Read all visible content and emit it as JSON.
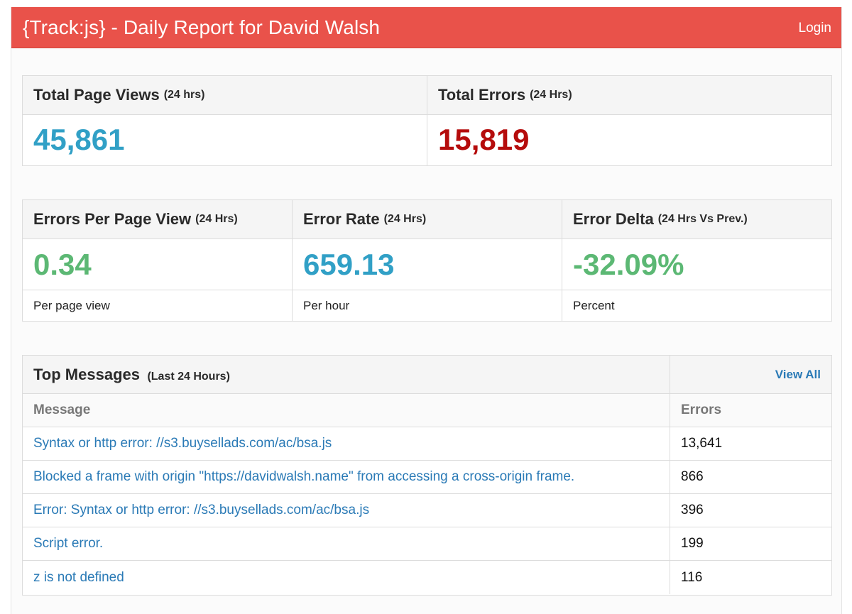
{
  "header": {
    "title": "{Track:js} - Daily Report for David Walsh",
    "login_label": "Login"
  },
  "totals": {
    "page_views": {
      "label": "Total Page Views",
      "period": "(24 hrs)",
      "value": "45,861"
    },
    "errors": {
      "label": "Total Errors",
      "period": "(24 Hrs)",
      "value": "15,819"
    }
  },
  "rates": {
    "errors_per_page_view": {
      "label": "Errors Per Page View",
      "period": "(24 Hrs)",
      "value": "0.34",
      "footer": "Per page view"
    },
    "error_rate": {
      "label": "Error Rate",
      "period": "(24 Hrs)",
      "value": "659.13",
      "footer": "Per hour"
    },
    "error_delta": {
      "label": "Error Delta",
      "period": "(24 Hrs Vs Prev.)",
      "value": "-32.09%",
      "footer": "Percent"
    }
  },
  "top_messages": {
    "title": "Top Messages",
    "period": "(Last 24 Hours)",
    "view_all_label": "View All",
    "columns": [
      "Message",
      "Errors"
    ],
    "rows": [
      {
        "message": "Syntax or http error: //s3.buysellads.com/ac/bsa.js",
        "errors": "13,641"
      },
      {
        "message": "Blocked a frame with origin \"https://davidwalsh.name\" from accessing a cross-origin frame.",
        "errors": "866"
      },
      {
        "message": "Error: Syntax or http error: //s3.buysellads.com/ac/bsa.js",
        "errors": "396"
      },
      {
        "message": "Script error.",
        "errors": "199"
      },
      {
        "message": "z is not defined",
        "errors": "116"
      }
    ]
  },
  "colors": {
    "header_bg": "#e9524a",
    "value_blue": "#31a0c6",
    "value_red": "#b50c0c",
    "value_green": "#5cb874",
    "link_blue": "#2a7ab6"
  }
}
